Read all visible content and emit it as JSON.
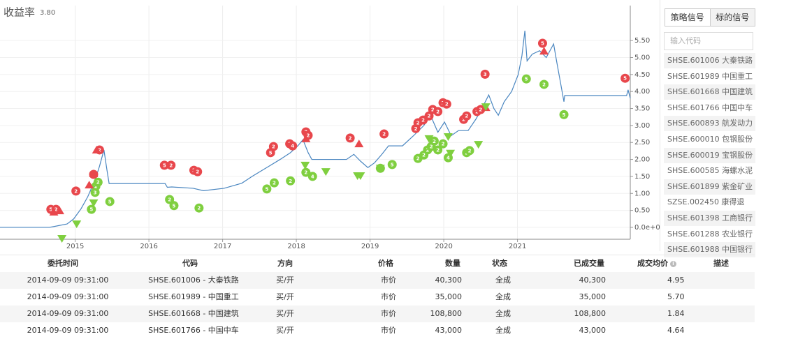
{
  "chart_data": {
    "type": "line",
    "title": "收益率",
    "subtitle": "3.80",
    "color": "#4a86c0",
    "grid": true,
    "x": [
      2013.98,
      2014.65,
      2014.7,
      2014.89,
      2014.98,
      2015.08,
      2015.17,
      2015.27,
      2015.33,
      2015.39,
      2015.43,
      2015.46,
      2016.22,
      2016.25,
      2016.31,
      2016.6,
      2016.74,
      2017.02,
      2017.26,
      2017.4,
      2017.59,
      2017.78,
      2017.92,
      2018.02,
      2018.09,
      2018.16,
      2018.21,
      2018.68,
      2018.78,
      2018.87,
      2018.97,
      2019.06,
      2019.16,
      2019.25,
      2019.44,
      2019.59,
      2019.73,
      2019.82,
      2019.92,
      2020.01,
      2020.1,
      2020.2,
      2020.33,
      2020.44,
      2020.54,
      2020.61,
      2020.68,
      2020.74,
      2020.82,
      2020.92,
      2021.01,
      2021.06,
      2021.1,
      2021.13,
      2021.2,
      2021.3,
      2021.39,
      2021.49,
      2021.53,
      2021.58,
      2021.63,
      2021.64,
      2022.48,
      2022.5,
      2022.53
    ],
    "values": [
      0,
      0,
      0.02,
      0.1,
      0.25,
      0.55,
      0.9,
      1.4,
      1.8,
      2.28,
      1.7,
      1.29,
      1.29,
      1.18,
      1.19,
      1.15,
      1.08,
      1.15,
      1.3,
      1.5,
      1.75,
      2.0,
      2.2,
      2.4,
      2.58,
      2.2,
      2.0,
      2.0,
      2.15,
      1.95,
      1.76,
      1.9,
      2.15,
      2.4,
      2.4,
      2.7,
      3.0,
      3.3,
      2.8,
      3.1,
      2.7,
      2.85,
      2.85,
      3.2,
      3.6,
      3.9,
      3.5,
      3.3,
      3.7,
      4.0,
      4.5,
      5.05,
      5.79,
      4.9,
      5.1,
      5.2,
      5.0,
      5.4,
      4.9,
      4.3,
      3.7,
      3.88,
      3.88,
      4.05,
      3.8
    ],
    "xlim": [
      2013.98,
      2022.53
    ],
    "xticks": [
      2015,
      2016,
      2017,
      2018,
      2019,
      2020,
      2021
    ],
    "ylim": [
      -0.35,
      6.53
    ],
    "yticks": [
      {
        "value": 0,
        "label": "0.0e+0"
      },
      {
        "value": 0.5,
        "label": "0.50"
      },
      {
        "value": 1,
        "label": "1.00"
      },
      {
        "value": 1.5,
        "label": "1.50"
      },
      {
        "value": 2,
        "label": "2.00"
      },
      {
        "value": 2.5,
        "label": "2.50"
      },
      {
        "value": 3,
        "label": "3.00"
      },
      {
        "value": 3.5,
        "label": "3.50"
      },
      {
        "value": 4,
        "label": "4.00"
      },
      {
        "value": 4.5,
        "label": "4.50"
      },
      {
        "value": 5,
        "label": "5.00"
      },
      {
        "value": 5.5,
        "label": "5.50"
      }
    ],
    "markers": [
      {
        "shape": "circle",
        "color": "#e8474c",
        "x": [
          2014.67,
          2014.74,
          2015.01,
          2015.25,
          2015.33,
          2016.21,
          2016.3,
          2016.61,
          2016.66,
          2017.65,
          2017.69,
          2017.91,
          2017.95,
          2018.13,
          2018.16,
          2018.73,
          2019.19,
          2019.62,
          2019.65,
          2019.72,
          2019.8,
          2019.85,
          2019.92,
          2019.99,
          2020.04,
          2020.27,
          2020.31,
          2020.45,
          2020.5,
          2020.56,
          2021.34,
          2022.46
        ],
        "values": [
          0.53,
          0.53,
          1.07,
          1.56,
          2.28,
          1.83,
          1.83,
          1.68,
          1.64,
          2.2,
          2.38,
          2.46,
          2.4,
          2.81,
          2.71,
          2.63,
          2.75,
          2.91,
          3.08,
          3.16,
          3.28,
          3.47,
          3.41,
          3.67,
          3.63,
          3.18,
          3.28,
          3.41,
          3.47,
          4.51,
          5.42,
          4.39
        ],
        "labels": [
          "5",
          "2",
          "2",
          "2",
          "2",
          "5",
          "2",
          "2",
          "2",
          "5",
          "2",
          "2",
          "4",
          "2",
          "2",
          "2",
          "2",
          "2",
          "2",
          "2",
          "2",
          "2",
          "2",
          "2",
          "2",
          "2",
          "2",
          "2",
          "2",
          "3",
          "5",
          "5"
        ]
      },
      {
        "shape": "circle",
        "color": "#7fcf3f",
        "x": [
          2015.22,
          2015.27,
          2015.28,
          2015.31,
          2015.47,
          2016.28,
          2016.34,
          2016.68,
          2017.6,
          2017.7,
          2017.92,
          2018.13,
          2018.22,
          2019.14,
          2019.3,
          2019.65,
          2019.73,
          2019.78,
          2019.83,
          2019.87,
          2019.92,
          2019.99,
          2020.06,
          2020.31,
          2020.35,
          2021.12,
          2021.36,
          2021.63
        ],
        "values": [
          0.53,
          1.03,
          1.21,
          1.33,
          0.76,
          0.82,
          0.64,
          0.57,
          1.13,
          1.31,
          1.37,
          1.62,
          1.5,
          1.74,
          1.85,
          2.03,
          2.13,
          2.28,
          2.38,
          2.54,
          2.28,
          2.46,
          2.05,
          2.2,
          2.26,
          4.37,
          4.21,
          3.32
        ],
        "labels": [
          "5",
          "3",
          "2",
          "2",
          "5",
          "2",
          "5",
          "2",
          "5",
          "2",
          "2",
          "2",
          "4",
          "2",
          "5",
          "2",
          "2",
          "2",
          "2",
          "2",
          "2",
          "2",
          "4",
          "2",
          "2",
          "5",
          "2",
          "5"
        ]
      },
      {
        "shape": "triangle-up",
        "color": "#e8474c",
        "x": [
          2014.71,
          2014.79,
          2015.19,
          2015.25,
          2015.29,
          2018.13,
          2018.85,
          2020.57,
          2021.36
        ],
        "values": [
          0.45,
          0.49,
          1.25,
          1.58,
          2.28,
          2.61,
          2.46,
          3.53,
          5.19
        ]
      },
      {
        "shape": "triangle-down",
        "color": "#7fcf3f",
        "x": [
          2014.82,
          2015.02,
          2015.25,
          2018.12,
          2018.4,
          2018.83,
          2018.87,
          2019.14,
          2019.8,
          2020.06,
          2020.09,
          2020.47,
          2020.57
        ],
        "values": [
          -0.33,
          0.1,
          0.72,
          1.83,
          1.64,
          1.52,
          1.52,
          1.74,
          2.61,
          2.67,
          2.18,
          2.44,
          3.55
        ]
      }
    ]
  },
  "sidebar": {
    "tabs": [
      "策略信号",
      "标的信号"
    ],
    "search_placeholder": "输入代码",
    "items": [
      "SHSE.601006 大秦铁路",
      "SHSE.601989 中国重工",
      "SHSE.601668 中国建筑",
      "SHSE.601766 中国中车",
      "SHSE.600893 航发动力",
      "SHSE.600010 包钢股份",
      "SHSE.600019 宝钢股份",
      "SHSE.600585 海螺水泥",
      "SHSE.601899 紫金矿业",
      "SZSE.002450 康得退",
      "SHSE.601398 工商银行",
      "SHSE.601288 农业银行",
      "SHSE.601988 中国银行"
    ]
  },
  "table": {
    "headers": [
      "委托时间",
      "代码",
      "方向",
      "价格",
      "数量",
      "状态",
      "已成交量",
      "成交均价",
      "描述"
    ],
    "rows": [
      [
        "2014-09-09 09:31:00",
        "SHSE.601006 - 大秦铁路",
        "买/开",
        "市价",
        "40,300",
        "全成",
        "40,300",
        "4.95"
      ],
      [
        "2014-09-09 09:31:00",
        "SHSE.601989 - 中国重工",
        "买/开",
        "市价",
        "35,000",
        "全成",
        "35,000",
        "5.70"
      ],
      [
        "2014-09-09 09:31:00",
        "SHSE.601668 - 中国建筑",
        "买/开",
        "市价",
        "108,800",
        "全成",
        "108,800",
        "1.84"
      ],
      [
        "2014-09-09 09:31:00",
        "SHSE.601766 - 中国中车",
        "买/开",
        "市价",
        "43,000",
        "全成",
        "43,000",
        "4.64"
      ]
    ]
  }
}
